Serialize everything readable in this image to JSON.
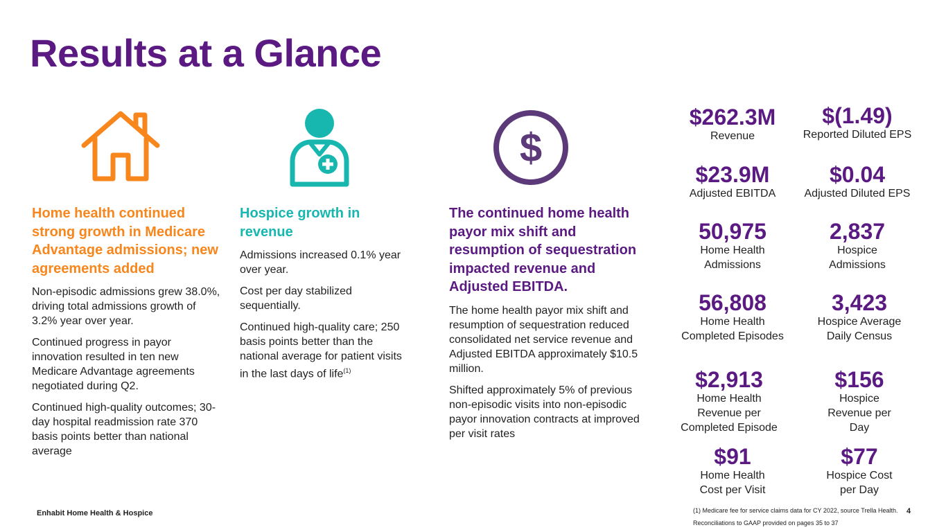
{
  "title": "Results at a Glance",
  "colors": {
    "brand_purple": "#5a1a82",
    "orange": "#f7861d",
    "teal": "#17b7b0",
    "icon_purple": "#5c3a7a"
  },
  "icons": {
    "home": "house-icon",
    "hospice": "nurse-icon",
    "revenue": "dollar-circle-icon"
  },
  "columns": {
    "home_health": {
      "heading": "Home health continued strong growth in Medicare Advantage admissions; new agreements added",
      "paragraphs": [
        "Non-episodic admissions grew 38.0%, driving total admissions growth of 3.2% year over year.",
        "Continued progress in payor innovation resulted in ten new Medicare Advantage agreements negotiated during Q2.",
        "Continued high-quality outcomes; 30-day hospital readmission rate 370 basis points better than national average"
      ]
    },
    "hospice": {
      "heading": "Hospice growth in revenue",
      "paragraphs": [
        "Admissions increased 0.1% year over year.",
        "Cost per day stabilized sequentially."
      ],
      "last_paragraph": "Continued high-quality care; 250 basis points better than the national average for patient visits in the last days of life",
      "last_sup": "(1)"
    },
    "payor_mix": {
      "heading": "The continued home health payor mix shift and resumption of sequestration impacted revenue and Adjusted EBITDA.",
      "paragraphs": [
        "The home health payor mix shift and resumption of sequestration reduced consolidated net service revenue and Adjusted EBITDA approximately $10.5 million.",
        "Shifted approximately 5% of previous non-episodic visits into non-episodic payor innovation contracts at improved per visit rates"
      ]
    }
  },
  "stats": {
    "revenue": {
      "value": "$262.3M",
      "label": "Revenue"
    },
    "reported_eps": {
      "value": "$(1.49)",
      "label": "Reported Diluted EPS"
    },
    "adj_ebitda": {
      "value": "$23.9M",
      "label": "Adjusted EBITDA"
    },
    "adj_eps": {
      "value": "$0.04",
      "label": "Adjusted Diluted EPS"
    },
    "hh_admissions": {
      "value": "50,975",
      "label": "Home Health Admissions"
    },
    "hospice_admissions": {
      "value": "2,837",
      "label": "Hospice Admissions"
    },
    "hh_episodes": {
      "value": "56,808",
      "label": "Home Health Completed Episodes"
    },
    "hospice_adc": {
      "value": "3,423",
      "label": "Hospice Average Daily Census"
    },
    "hh_rev_episode": {
      "value": "$2,913",
      "label": "Home Health Revenue per Completed Episode"
    },
    "hospice_rev_day": {
      "value": "$156",
      "label": "Hospice Revenue per Day"
    },
    "hh_cost_visit": {
      "value": "$91",
      "label": "Home Health Cost per Visit"
    },
    "hospice_cost_day": {
      "value": "$77",
      "label": "Hospice Cost per Day"
    }
  },
  "footer": {
    "brand": "Enhabit Home Health & Hospice",
    "footnote1": "(1) Medicare fee for service claims data for CY 2022, source Trella Health.",
    "footnote2": "Reconciliations to GAAP provided on pages 35 to 37",
    "page_number": "4"
  }
}
